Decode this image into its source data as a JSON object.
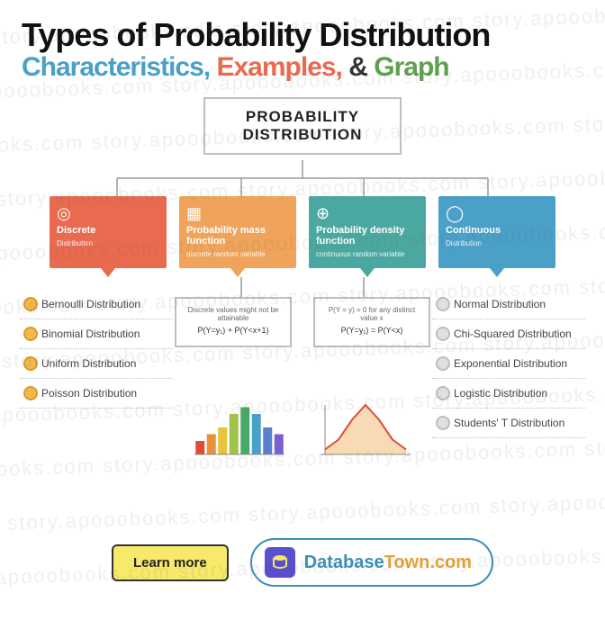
{
  "title": {
    "main": "Types of Probability Distribution",
    "sub1": "Characteristics,",
    "sub2": "Examples,",
    "amp": "&",
    "sub3": "Graph",
    "main_color": "#111111",
    "sub1_color": "#4aa0c7",
    "sub2_color": "#e86a4f",
    "sub3_color": "#5fa04e",
    "main_fontsize": 36,
    "sub_fontsize": 30
  },
  "root": {
    "line1": "PROBABILITY",
    "line2": "DISTRIBUTION",
    "border_color": "#bfbfbf"
  },
  "cards": [
    {
      "title": "Discrete",
      "sub": "Distribution",
      "icon": "◎",
      "color": "#e86a4f"
    },
    {
      "title": "Probability mass function",
      "sub": "discrete random variable",
      "icon": "▦",
      "color": "#f0a35a"
    },
    {
      "title": "Probability density function",
      "sub": "continuous random variable",
      "icon": "⊕",
      "color": "#4aa8a0"
    },
    {
      "title": "Continuous",
      "sub": "Distribution",
      "icon": "◯",
      "color": "#4aa0c7"
    }
  ],
  "discrete_list": [
    "Bernoulli Distribution",
    "Binomial Distribution",
    "Uniform Distribution",
    "Poisson Distribution"
  ],
  "continuous_list": [
    "Normal Distribution",
    "Chi-Squared Distribution",
    "Exponential Distribution",
    "Logistic Distribution",
    "Students' T Distribution"
  ],
  "examples": {
    "left": {
      "text": "Discrete values might not be attainable",
      "formula": "P(Y=y₁) + P(Y<x+1)"
    },
    "right": {
      "text": "P(Y = y) = 0 for any distinct value x",
      "formula": "P(Y=y₁) = P(Y<x)"
    }
  },
  "bar_chart": {
    "type": "bar",
    "values": [
      2,
      3,
      4,
      6,
      7,
      6,
      4,
      3
    ],
    "colors": [
      "#d94f3a",
      "#e8913a",
      "#e8c23a",
      "#9fc24a",
      "#4aa86a",
      "#4aa0c7",
      "#5a7fcf",
      "#7a5fcf"
    ],
    "ymax": 8
  },
  "line_chart": {
    "type": "line",
    "values": [
      0.1,
      0.3,
      0.7,
      1.0,
      0.7,
      0.3,
      0.1
    ],
    "stroke": "#d94f3a",
    "fill": "#f2b56a"
  },
  "footer": {
    "learn_label": "Learn more",
    "learn_bg": "#f7e96a",
    "brand1": "Database",
    "brand2": "Town",
    "brand_suffix": ".com",
    "brand1_color": "#3a8fb7",
    "brand2_color": "#e8a23a",
    "brand_icon_bg": "#5a4fcf"
  },
  "watermark": "story.apooobooks.com ",
  "connectors": {
    "stroke": "#9a9a9a",
    "width": 1.5
  }
}
